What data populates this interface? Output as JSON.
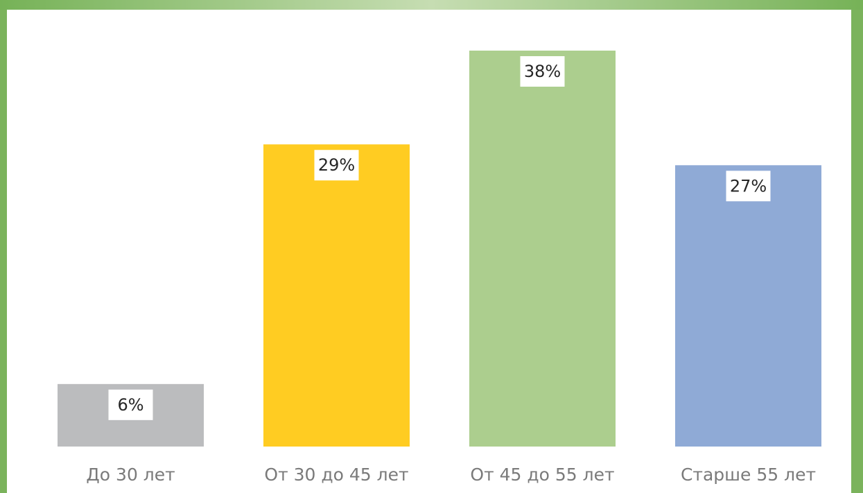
{
  "chart_data": {
    "type": "bar",
    "categories": [
      "До 30 лет",
      "От 30 до 45 лет",
      "От 45 до 55 лет",
      "Старше 55 лет"
    ],
    "values": [
      6,
      29,
      38,
      27
    ],
    "value_labels": [
      "6%",
      "29%",
      "38%",
      "27%"
    ],
    "colors": [
      "#bbbcbe",
      "#ffcc22",
      "#acce8e",
      "#8faad6"
    ]
  }
}
